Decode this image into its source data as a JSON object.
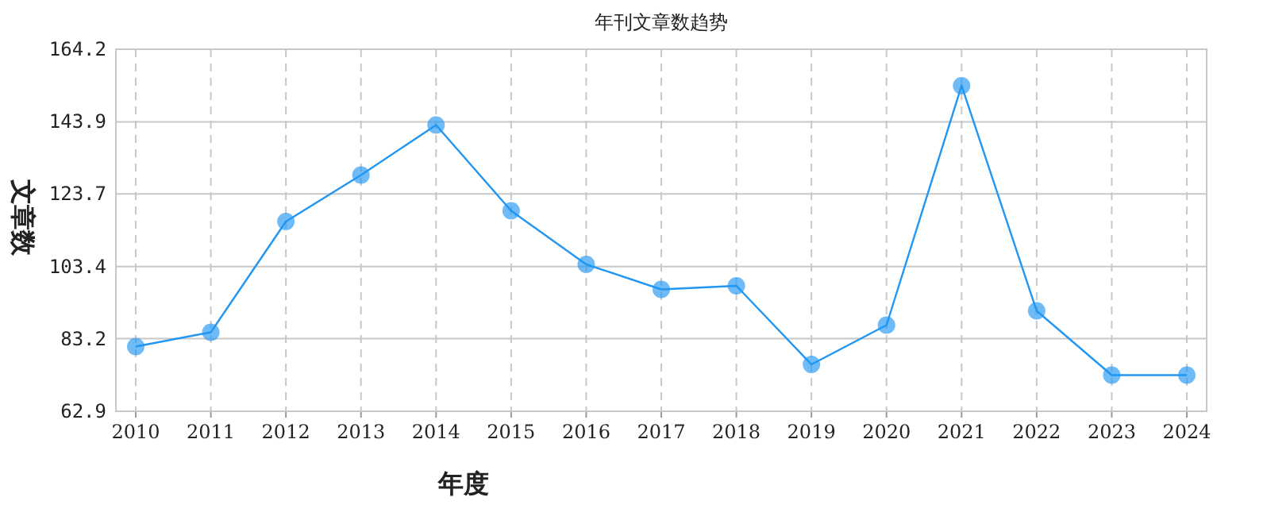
{
  "chart_data": {
    "type": "line",
    "title": "年刊文章数趋势",
    "xlabel": "年度",
    "ylabel": "文章数",
    "categories": [
      "2010",
      "2011",
      "2012",
      "2013",
      "2014",
      "2015",
      "2016",
      "2017",
      "2018",
      "2019",
      "2020",
      "2021",
      "2022",
      "2023",
      "2024"
    ],
    "series": [
      {
        "color": "#2196f3",
        "values": [
          81,
          85,
          116,
          129,
          143,
          119,
          104,
          97,
          98,
          76,
          87,
          154,
          91,
          73,
          73
        ]
      }
    ],
    "ylim": [
      62.9,
      164.2
    ],
    "yticks": [
      62.9,
      83.2,
      103.4,
      123.7,
      143.9,
      164.2
    ],
    "grid": true,
    "marker": "circle",
    "line_style": "solid"
  }
}
